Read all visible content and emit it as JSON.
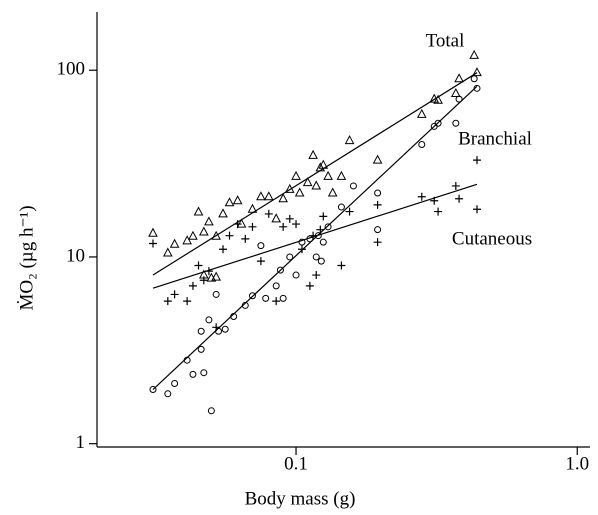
{
  "chart_data": {
    "type": "scatter",
    "xlabel": "Body mass (g)",
    "ylabel": "ṀO₂ (µg h⁻¹)",
    "xscale": "log",
    "yscale": "log",
    "xlim": [
      0.0196,
      1.11
    ],
    "ylim": [
      0.96,
      205
    ],
    "xticks": [
      0.1,
      {
        "value": 1,
        "label": "1.0"
      }
    ],
    "yticks": [
      1,
      10,
      100
    ],
    "color": "#000000",
    "series": [
      {
        "name": "Total",
        "marker": "triangle",
        "x": [
          0.031,
          0.035,
          0.037,
          0.041,
          0.043,
          0.045,
          0.047,
          0.049,
          0.052,
          0.055,
          0.058,
          0.062,
          0.064,
          0.07,
          0.075,
          0.08,
          0.085,
          0.09,
          0.095,
          0.1,
          0.103,
          0.11,
          0.115,
          0.118,
          0.122,
          0.125,
          0.13,
          0.135,
          0.145,
          0.155,
          0.195,
          0.28,
          0.31,
          0.32,
          0.37,
          0.38,
          0.43,
          0.44,
          0.047,
          0.05,
          0.052
        ],
        "y": [
          13.4,
          10.5,
          11.7,
          12.2,
          12.9,
          17.4,
          13.6,
          15.4,
          12.9,
          17.0,
          19.5,
          20.0,
          15.0,
          18.0,
          21.0,
          21.0,
          16.0,
          20.5,
          23.0,
          27.0,
          22.0,
          25.0,
          35.0,
          24.0,
          30.0,
          31.0,
          27.0,
          22.0,
          27.0,
          42.0,
          33.0,
          58.0,
          70.0,
          69.0,
          75.0,
          90.0,
          120.0,
          97.0,
          8.0,
          7.7,
          7.8
        ],
        "fit": {
          "x": [
            0.031,
            0.44
          ],
          "y": [
            8.0,
            97
          ]
        }
      },
      {
        "name": "Branchial",
        "marker": "circle",
        "x": [
          0.031,
          0.035,
          0.037,
          0.041,
          0.043,
          0.046,
          0.047,
          0.046,
          0.049,
          0.05,
          0.052,
          0.053,
          0.056,
          0.06,
          0.066,
          0.07,
          0.075,
          0.078,
          0.085,
          0.088,
          0.09,
          0.095,
          0.1,
          0.105,
          0.112,
          0.118,
          0.12,
          0.123,
          0.125,
          0.13,
          0.145,
          0.16,
          0.195,
          0.195,
          0.28,
          0.31,
          0.32,
          0.37,
          0.38,
          0.43,
          0.44
        ],
        "y": [
          1.95,
          1.85,
          2.1,
          2.8,
          2.35,
          3.2,
          2.4,
          4.0,
          4.6,
          1.5,
          6.3,
          4.0,
          4.1,
          4.8,
          5.5,
          6.2,
          11.5,
          6.0,
          7.0,
          8.5,
          6.0,
          10.0,
          8.0,
          12.0,
          12.5,
          10.0,
          13.0,
          9.5,
          12.0,
          14.5,
          18.5,
          24.0,
          14.0,
          22.0,
          40.0,
          50.0,
          52.0,
          52.0,
          70.0,
          90.0,
          80.0
        ],
        "fit": {
          "x": [
            0.031,
            0.44
          ],
          "y": [
            1.95,
            82
          ]
        }
      },
      {
        "name": "Cutaneous",
        "marker": "plus",
        "x": [
          0.031,
          0.035,
          0.037,
          0.041,
          0.043,
          0.045,
          0.047,
          0.049,
          0.052,
          0.055,
          0.058,
          0.062,
          0.066,
          0.07,
          0.075,
          0.08,
          0.085,
          0.09,
          0.095,
          0.1,
          0.105,
          0.112,
          0.115,
          0.118,
          0.122,
          0.125,
          0.145,
          0.155,
          0.195,
          0.195,
          0.28,
          0.31,
          0.32,
          0.37,
          0.38,
          0.44,
          0.44
        ],
        "y": [
          11.8,
          5.8,
          6.3,
          5.8,
          7.0,
          9.0,
          7.5,
          8.4,
          4.2,
          11.0,
          13.0,
          15.0,
          12.5,
          14.5,
          9.5,
          17.0,
          5.8,
          14.5,
          16.0,
          15.0,
          11.0,
          7.0,
          13.0,
          8.0,
          14.0,
          16.5,
          9.0,
          17.5,
          12.0,
          19.0,
          21.0,
          20.0,
          17.5,
          24.0,
          20.5,
          33.0,
          18.0
        ],
        "fit": {
          "x": [
            0.031,
            0.44
          ],
          "y": [
            6.8,
            24.5
          ]
        }
      }
    ]
  }
}
